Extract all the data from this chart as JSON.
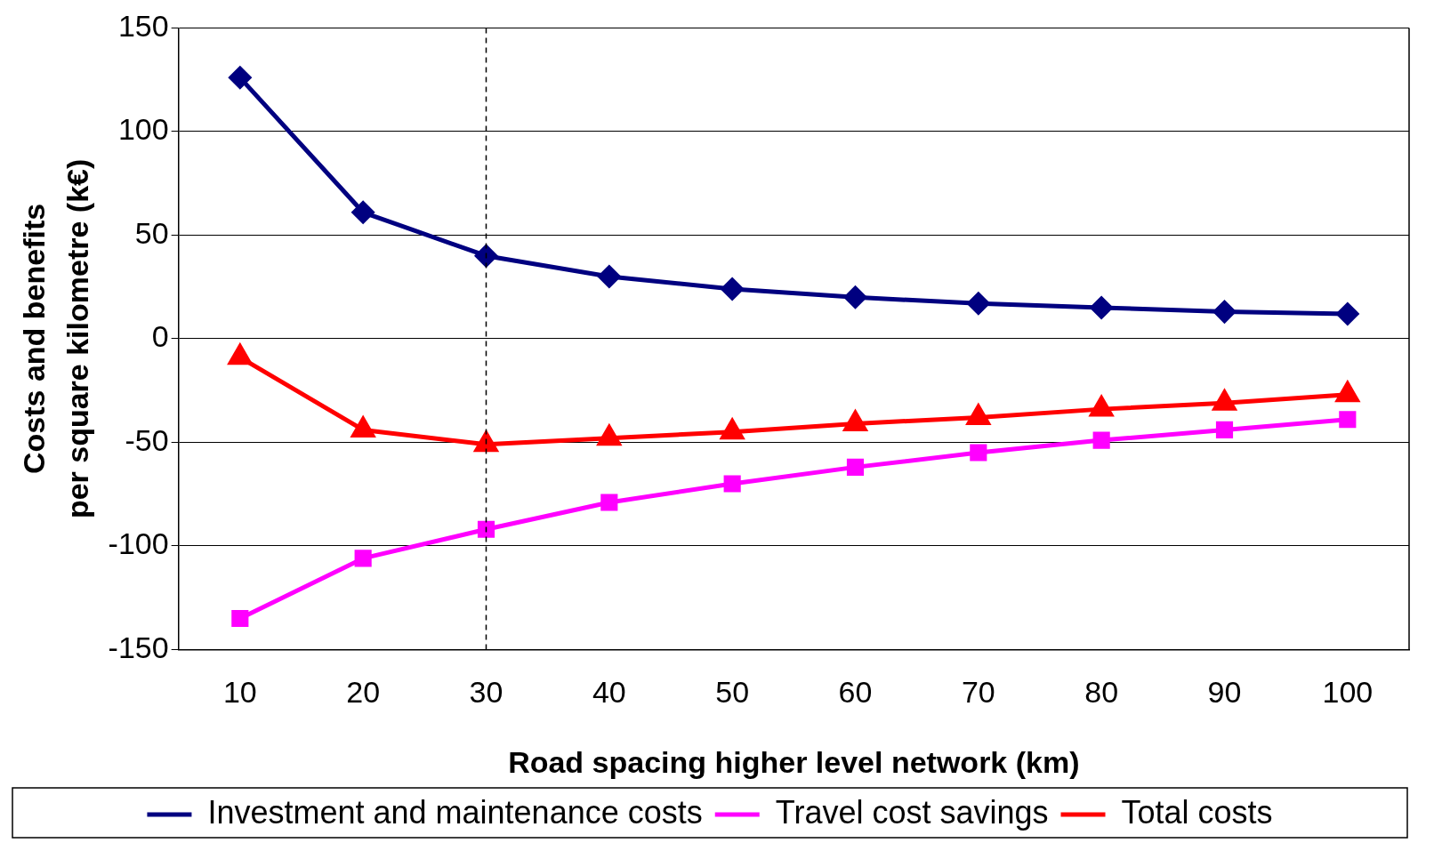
{
  "chart_data": {
    "type": "line",
    "xlabel": "Road spacing higher level network (km)",
    "ylabel": "Costs and benefits\nper square kilometre (k€)",
    "categories": [
      "10",
      "20",
      "30",
      "40",
      "50",
      "60",
      "70",
      "80",
      "90",
      "100"
    ],
    "series": [
      {
        "name": "Investment and maintenance costs",
        "color": "#000080",
        "marker": "diamond",
        "values": [
          126,
          61,
          40,
          30,
          24,
          20,
          17,
          15,
          13,
          12
        ]
      },
      {
        "name": "Travel cost savings",
        "color": "#ff00ff",
        "marker": "square",
        "values": [
          -135,
          -106,
          -92,
          -79,
          -70,
          -62,
          -55,
          -49,
          -44,
          -39
        ]
      },
      {
        "name": "Total costs",
        "color": "#ff0000",
        "marker": "triangle",
        "values": [
          -9,
          -44,
          -51,
          -48,
          -45,
          -41,
          -38,
          -34,
          -31,
          -27
        ]
      }
    ],
    "ylim": [
      -150,
      150
    ],
    "yticks": [
      -150,
      -100,
      -50,
      0,
      50,
      100,
      150
    ],
    "grid": "y",
    "legend": "bottom",
    "ref_lines": [
      {
        "axis": "x",
        "value": "30",
        "line_style": "dashed",
        "color": "#000000"
      }
    ]
  }
}
